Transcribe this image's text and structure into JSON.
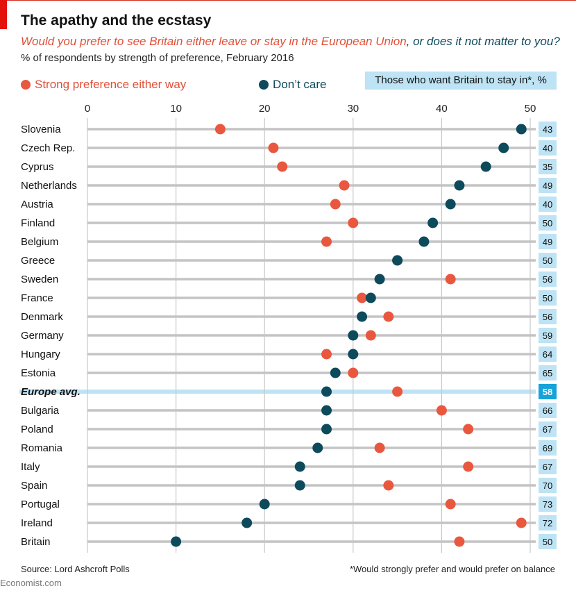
{
  "header": {
    "title": "The apathy and the ecstasy",
    "subtitle_part1": "Would you prefer to see Britain either leave or stay in the European Union",
    "subtitle_part2": ", or does it not matter to you?",
    "note": "% of respondents by strength of preference, February 2016"
  },
  "legend": {
    "strong": "Strong preference either way",
    "dont_care": "Don’t care",
    "stay_header": "Those who want Britain to stay in*, %"
  },
  "footer": {
    "source": "Source: Lord Ashcroft Polls",
    "footnote": "*Would strongly prefer and would prefer on balance",
    "brand": "Economist.com"
  },
  "colors": {
    "strong": "#e9573f",
    "dont_care": "#0d4a5c",
    "highlight": "#bde3f4",
    "stay_box": "#bde3f4",
    "stay_box_avg": "#16a3d9"
  },
  "chart_data": {
    "type": "dot",
    "xlim": [
      0,
      50
    ],
    "xticks": [
      0,
      10,
      20,
      30,
      40,
      50
    ],
    "grid": true,
    "legend_position": "top",
    "categories": [
      "Slovenia",
      "Czech Rep.",
      "Cyprus",
      "Netherlands",
      "Austria",
      "Finland",
      "Belgium",
      "Greece",
      "Sweden",
      "France",
      "Denmark",
      "Germany",
      "Hungary",
      "Estonia",
      "Europe avg.",
      "Bulgaria",
      "Poland",
      "Romania",
      "Italy",
      "Spain",
      "Portugal",
      "Ireland",
      "Britain"
    ],
    "highlight_category": "Europe avg.",
    "series": [
      {
        "name": "Strong preference either way",
        "values": [
          15,
          21,
          22,
          29,
          28,
          30,
          27,
          35,
          41,
          31,
          34,
          32,
          27,
          30,
          35,
          40,
          43,
          33,
          43,
          34,
          41,
          49,
          42
        ]
      },
      {
        "name": "Don’t care",
        "values": [
          49,
          47,
          45,
          42,
          41,
          39,
          38,
          35,
          33,
          32,
          31,
          30,
          30,
          28,
          27,
          27,
          27,
          26,
          24,
          24,
          20,
          18,
          10
        ]
      }
    ],
    "stay_in_pct": [
      43,
      40,
      35,
      49,
      40,
      50,
      49,
      50,
      56,
      50,
      56,
      59,
      64,
      65,
      58,
      66,
      67,
      69,
      67,
      70,
      73,
      72,
      50
    ]
  }
}
